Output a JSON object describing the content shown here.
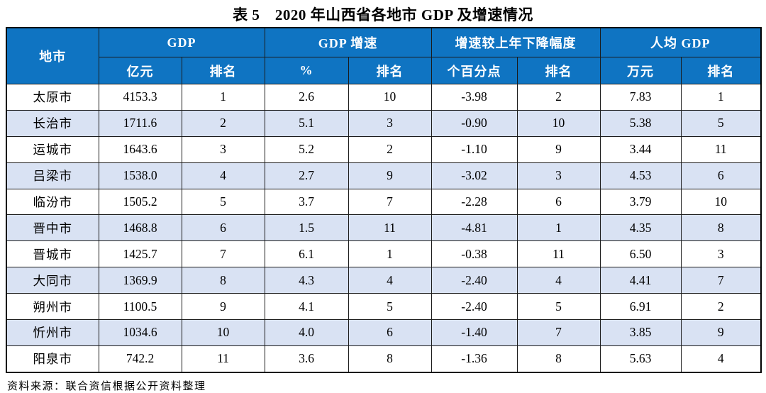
{
  "title": "表 5　2020 年山西省各地市 GDP 及增速情况",
  "source_note": "资料来源：联合资信根据公开资料整理",
  "colors": {
    "header_bg": "#0f74c2",
    "header_text": "#ffffff",
    "stripe_bg": "#d9e2f3",
    "border": "#1a1a1a"
  },
  "table": {
    "columns": {
      "corner": "地市",
      "groups": [
        {
          "label": "GDP",
          "subs": [
            "亿元",
            "排名"
          ]
        },
        {
          "label": "GDP 增速",
          "subs": [
            "%",
            "排名"
          ]
        },
        {
          "label": "增速较上年下降幅度",
          "subs": [
            "个百分点",
            "排名"
          ]
        },
        {
          "label": "人均 GDP",
          "subs": [
            "万元",
            "排名"
          ]
        }
      ]
    },
    "rows": [
      {
        "city": "太原市",
        "values": [
          "4153.3",
          "1",
          "2.6",
          "10",
          "-3.98",
          "2",
          "7.83",
          "1"
        ]
      },
      {
        "city": "长治市",
        "values": [
          "1711.6",
          "2",
          "5.1",
          "3",
          "-0.90",
          "10",
          "5.38",
          "5"
        ]
      },
      {
        "city": "运城市",
        "values": [
          "1643.6",
          "3",
          "5.2",
          "2",
          "-1.10",
          "9",
          "3.44",
          "11"
        ]
      },
      {
        "city": "吕梁市",
        "values": [
          "1538.0",
          "4",
          "2.7",
          "9",
          "-3.02",
          "3",
          "4.53",
          "6"
        ]
      },
      {
        "city": "临汾市",
        "values": [
          "1505.2",
          "5",
          "3.7",
          "7",
          "-2.28",
          "6",
          "3.79",
          "10"
        ]
      },
      {
        "city": "晋中市",
        "values": [
          "1468.8",
          "6",
          "1.5",
          "11",
          "-4.81",
          "1",
          "4.35",
          "8"
        ]
      },
      {
        "city": "晋城市",
        "values": [
          "1425.7",
          "7",
          "6.1",
          "1",
          "-0.38",
          "11",
          "6.50",
          "3"
        ]
      },
      {
        "city": "大同市",
        "values": [
          "1369.9",
          "8",
          "4.3",
          "4",
          "-2.40",
          "4",
          "4.41",
          "7"
        ]
      },
      {
        "city": "朔州市",
        "values": [
          "1100.5",
          "9",
          "4.1",
          "5",
          "-2.40",
          "5",
          "6.91",
          "2"
        ]
      },
      {
        "city": "忻州市",
        "values": [
          "1034.6",
          "10",
          "4.0",
          "6",
          "-1.40",
          "7",
          "3.85",
          "9"
        ]
      },
      {
        "city": "阳泉市",
        "values": [
          "742.2",
          "11",
          "3.6",
          "8",
          "-1.36",
          "8",
          "5.63",
          "4"
        ]
      }
    ]
  }
}
